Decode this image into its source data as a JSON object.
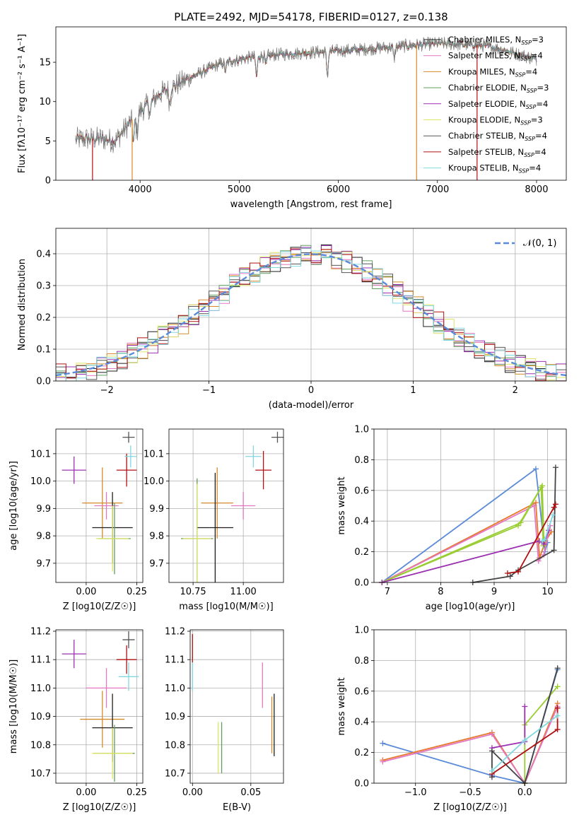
{
  "figure": {
    "title": "PLATE=2492, MJD=54178, FIBERID=0127, z=0.138"
  },
  "colors": {
    "Chabrier MILES": "#1f1f1f",
    "Salpeter MILES": "#e377c2",
    "Kroupa MILES": "#d58a2a",
    "Chabrier ELODIE": "#5f9e5f",
    "Salpeter ELODIE": "#9b30b0",
    "Kroupa ELODIE": "#dde366",
    "Chabrier STELIB": "#555555",
    "Salpeter STELIB": "#b01010",
    "Kroupa STELIB": "#80d8e0",
    "gauss": "#5b8bd8",
    "axis_mw_chab_miles": "#5b8bd8",
    "axis_mw_orange": "#e8782a",
    "axis_mw_green": "#9acd32",
    "axis_mw_purple": "#9b30b0",
    "axis_mw_dark": "#444444",
    "axis_mw_red": "#b01010",
    "axis_mw_cyan": "#80d8e0",
    "axis_mw_pink": "#e377c2"
  },
  "chart_data": [
    {
      "id": "spectrum",
      "type": "line",
      "xlabel": "wavelength [Angstrom, rest frame]",
      "ylabel": "Flux [fλ10⁻¹⁷ erg cm⁻² s⁻¹ A⁻¹]",
      "xlim": [
        3150,
        8300
      ],
      "ylim": [
        0,
        19.5
      ],
      "xticks": [
        4000,
        5000,
        6000,
        7000,
        8000
      ],
      "yticks": [
        0,
        5,
        10,
        15
      ],
      "legend": [
        "Chabrier MILES, N_SSP=3",
        "Salpeter MILES, N_SSP=4",
        "Kroupa MILES, N_SSP=4",
        "Chabrier ELODIE, N_SSP=3",
        "Salpeter ELODIE, N_SSP=4",
        "Kroupa ELODIE, N_SSP=3",
        "Chabrier STELIB, N_SSP=4",
        "Salpeter STELIB, N_SSP=4",
        "Kroupa STELIB, N_SSP=4"
      ],
      "legend_series": [
        "Chabrier MILES",
        "Salpeter MILES",
        "Kroupa MILES",
        "Chabrier ELODIE",
        "Salpeter ELODIE",
        "Kroupa ELODIE",
        "Chabrier STELIB",
        "Salpeter STELIB",
        "Kroupa STELIB"
      ],
      "legend_placement": "top-right",
      "grid": false,
      "data_range": [
        3350,
        8000
      ],
      "continuum": [
        [
          3350,
          5.2
        ],
        [
          3600,
          5.3
        ],
        [
          3750,
          5.0
        ],
        [
          3950,
          8.2
        ],
        [
          4200,
          11.0
        ],
        [
          4500,
          13.0
        ],
        [
          4800,
          14.8
        ],
        [
          5100,
          15.6
        ],
        [
          5400,
          16.0
        ],
        [
          5800,
          16.3
        ],
        [
          6200,
          16.6
        ],
        [
          6600,
          17.0
        ],
        [
          7000,
          17.4
        ],
        [
          7500,
          17.1
        ],
        [
          8000,
          15.4
        ]
      ],
      "absorption_features": [
        [
          3934,
          -3.0
        ],
        [
          3969,
          -2.5
        ],
        [
          4101,
          -1.5
        ],
        [
          4300,
          -2.0
        ],
        [
          4861,
          -1.0
        ],
        [
          5175,
          -2.5
        ],
        [
          5270,
          -1.2
        ],
        [
          5890,
          -3.0
        ],
        [
          6563,
          -1.5
        ]
      ],
      "model_vertical_drops": [
        [
          3520,
          "Salpeter STELIB"
        ],
        [
          3920,
          "Kroupa MILES"
        ],
        [
          6790,
          "Kroupa MILES"
        ],
        [
          7400,
          "Salpeter STELIB"
        ]
      ]
    },
    {
      "id": "residuals",
      "type": "step",
      "xlabel": "(data-model)/error",
      "ylabel": "Normed distribution",
      "xlim": [
        -2.5,
        2.5
      ],
      "ylim": [
        0,
        0.48
      ],
      "xticks": [
        -2,
        -1,
        0,
        1,
        2
      ],
      "yticks": [
        0.0,
        0.1,
        0.2,
        0.3,
        0.4
      ],
      "grid": true,
      "bin_width": 0.1,
      "legend": [
        "𝒩(0, 1)"
      ],
      "legend_placement": "top-right"
    },
    {
      "id": "age_vs_Z",
      "type": "errorbar",
      "xlabel": "Z [log10(Z/Z☉)]",
      "ylabel": "age  [log10(age/yr)]",
      "xlim": [
        -0.15,
        0.28
      ],
      "ylim": [
        9.63,
        10.19
      ],
      "xticks": [
        0.0,
        0.25
      ],
      "yticks": [
        9.7,
        9.8,
        9.9,
        10.0,
        10.1
      ],
      "grid": true,
      "points": [
        {
          "series": "Salpeter ELODIE",
          "x": -0.06,
          "y": 10.04,
          "xerr": 0.06,
          "yerr": 0.05
        },
        {
          "series": "Kroupa MILES",
          "x": 0.08,
          "y": 9.92,
          "xerr": 0.1,
          "yerr": 0.13
        },
        {
          "series": "Salpeter MILES",
          "x": 0.1,
          "y": 9.91,
          "xerr": 0.06,
          "yerr": 0.05
        },
        {
          "series": "Chabrier MILES",
          "x": 0.13,
          "y": 9.83,
          "xerr": 0.1,
          "yerr": 0.13
        },
        {
          "series": "Chabrier ELODIE",
          "x": 0.14,
          "y": 9.79,
          "xerr": 0.08,
          "yerr": 0.13
        },
        {
          "series": "Kroupa ELODIE",
          "x": 0.13,
          "y": 9.79,
          "xerr": 0.08,
          "yerr": 0.12
        },
        {
          "series": "Chabrier STELIB",
          "x": 0.21,
          "y": 10.16,
          "xerr": 0.03,
          "yerr": 0.02
        },
        {
          "series": "Salpeter STELIB",
          "x": 0.2,
          "y": 10.04,
          "xerr": 0.05,
          "yerr": 0.06
        },
        {
          "series": "Kroupa STELIB",
          "x": 0.22,
          "y": 10.09,
          "xerr": 0.03,
          "yerr": 0.04
        }
      ]
    },
    {
      "id": "age_vs_mass",
      "type": "errorbar",
      "xlabel": "mass [log10(M/M☉)]",
      "ylabel": "",
      "xlim": [
        10.63,
        11.2
      ],
      "ylim": [
        9.63,
        10.19
      ],
      "xticks": [
        10.75,
        11.0
      ],
      "yticks": [
        9.7,
        9.8,
        9.9,
        10.0,
        10.1
      ],
      "grid": true,
      "points": [
        {
          "series": "Kroupa MILES",
          "x": 10.87,
          "y": 9.92,
          "xerr": 0.08,
          "yerr": 0.13
        },
        {
          "series": "Salpeter MILES",
          "x": 11.0,
          "y": 9.91,
          "xerr": 0.06,
          "yerr": 0.05
        },
        {
          "series": "Chabrier MILES",
          "x": 10.86,
          "y": 9.83,
          "xerr": 0.09,
          "yerr": 0.2
        },
        {
          "series": "Chabrier ELODIE",
          "x": 10.77,
          "y": 9.79,
          "xerr": 0.08,
          "yerr": 0.22
        },
        {
          "series": "Kroupa ELODIE",
          "x": 10.77,
          "y": 9.79,
          "xerr": 0.07,
          "yerr": 0.2
        },
        {
          "series": "Chabrier STELIB",
          "x": 11.17,
          "y": 10.16,
          "xerr": 0.03,
          "yerr": 0.02
        },
        {
          "series": "Salpeter STELIB",
          "x": 11.1,
          "y": 10.04,
          "xerr": 0.04,
          "yerr": 0.07
        },
        {
          "series": "Kroupa STELIB",
          "x": 11.05,
          "y": 10.09,
          "xerr": 0.04,
          "yerr": 0.04
        }
      ]
    },
    {
      "id": "massweight_vs_age",
      "type": "line",
      "xlabel": "age  [log10(age/yr)]",
      "ylabel": "mass weight",
      "xlim": [
        6.75,
        10.35
      ],
      "ylim": [
        0.0,
        1.0
      ],
      "xticks": [
        7,
        8,
        9,
        10
      ],
      "yticks": [
        0.0,
        0.2,
        0.4,
        0.6,
        0.8,
        1.0
      ],
      "grid": true,
      "series": [
        {
          "name": "Chabrier MILES",
          "color_key": "axis_mw_chab_miles",
          "x": [
            6.9,
            9.78,
            9.95,
            10.0
          ],
          "y": [
            0.0,
            0.74,
            0.2,
            0.26
          ]
        },
        {
          "name": "Kroupa MILES",
          "color_key": "axis_mw_orange",
          "x": [
            6.9,
            9.78,
            9.85,
            9.95,
            10.07
          ],
          "y": [
            0.0,
            0.52,
            0.16,
            0.26,
            0.33
          ]
        },
        {
          "name": "Salpeter MILES",
          "color_key": "axis_mw_pink",
          "x": [
            6.9,
            9.75,
            9.83,
            9.93,
            10.05
          ],
          "y": [
            0.0,
            0.5,
            0.14,
            0.18,
            0.37
          ]
        },
        {
          "name": "Kroupa ELODIE",
          "color_key": "axis_mw_green",
          "x": [
            6.9,
            9.5,
            9.9,
            9.93
          ],
          "y": [
            0.0,
            0.39,
            0.63,
            0.27
          ]
        },
        {
          "name": "Chabrier ELODIE",
          "color_key": "axis_mw_green",
          "x": [
            6.9,
            9.45,
            9.88,
            9.92
          ],
          "y": [
            0.0,
            0.37,
            0.62,
            0.24
          ]
        },
        {
          "name": "Salpeter ELODIE",
          "color_key": "axis_mw_purple",
          "x": [
            6.9,
            9.85,
            9.93,
            10.02
          ],
          "y": [
            0.0,
            0.27,
            0.25,
            0.34
          ]
        },
        {
          "name": "Chabrier STELIB",
          "color_key": "axis_mw_dark",
          "x": [
            8.6,
            9.3,
            9.45,
            10.12,
            10.15
          ],
          "y": [
            0.0,
            0.04,
            0.08,
            0.21,
            0.75
          ]
        },
        {
          "name": "Salpeter STELIB",
          "color_key": "axis_mw_red",
          "x": [
            9.25,
            9.45,
            10.12,
            10.15
          ],
          "y": [
            0.06,
            0.07,
            0.49,
            0.51
          ]
        },
        {
          "name": "Kroupa STELIB",
          "color_key": "axis_mw_cyan",
          "x": [
            9.9,
            9.95,
            10.1
          ],
          "y": [
            0.27,
            0.28,
            0.44
          ]
        }
      ]
    },
    {
      "id": "mass_vs_Z",
      "type": "errorbar",
      "xlabel": "Z [log10(Z/Z☉)]",
      "ylabel": "mass [log10(M/M☉)]",
      "xlim": [
        -0.15,
        0.28
      ],
      "ylim": [
        10.665,
        11.205
      ],
      "xticks": [
        0.0,
        0.25
      ],
      "yticks": [
        10.7,
        10.8,
        10.9,
        11.0,
        11.1,
        11.2
      ],
      "grid": true,
      "points": [
        {
          "series": "Salpeter ELODIE",
          "x": -0.06,
          "y": 11.12,
          "xerr": 0.06,
          "yerr": 0.05
        },
        {
          "series": "Salpeter MILES",
          "x": 0.1,
          "y": 11.0,
          "xerr": 0.1,
          "yerr": 0.07
        },
        {
          "series": "Kroupa MILES",
          "x": 0.08,
          "y": 10.89,
          "xerr": 0.11,
          "yerr": 0.1
        },
        {
          "series": "Chabrier MILES",
          "x": 0.13,
          "y": 10.86,
          "xerr": 0.1,
          "yerr": 0.12
        },
        {
          "series": "Chabrier ELODIE",
          "x": 0.14,
          "y": 10.77,
          "xerr": 0.1,
          "yerr": 0.1
        },
        {
          "series": "Kroupa ELODIE",
          "x": 0.13,
          "y": 10.77,
          "xerr": 0.1,
          "yerr": 0.09
        },
        {
          "series": "Chabrier STELIB",
          "x": 0.21,
          "y": 11.17,
          "xerr": 0.03,
          "yerr": 0.03
        },
        {
          "series": "Salpeter STELIB",
          "x": 0.2,
          "y": 11.1,
          "xerr": 0.05,
          "yerr": 0.05
        },
        {
          "series": "Kroupa STELIB",
          "x": 0.21,
          "y": 11.04,
          "xerr": 0.05,
          "yerr": 0.05
        }
      ]
    },
    {
      "id": "mass_vs_ebv",
      "type": "errorbar",
      "xlabel": "E(B-V)",
      "ylabel": "",
      "xlim": [
        -0.002,
        0.078
      ],
      "ylim": [
        10.665,
        11.205
      ],
      "xticks": [
        0.0,
        0.05
      ],
      "yticks": [
        10.7,
        10.8,
        10.9,
        11.0,
        11.1,
        11.2
      ],
      "grid": true,
      "points": [
        {
          "series": "Salpeter STELIB",
          "x": 0.0,
          "y": 11.14,
          "xerr": 0,
          "yerr": 0.05
        },
        {
          "series": "Kroupa STELIB",
          "x": 0.0,
          "y": 11.04,
          "xerr": 0,
          "yerr": 0.05
        },
        {
          "series": "Salpeter MILES",
          "x": 0.06,
          "y": 11.01,
          "xerr": 0,
          "yerr": 0.08
        },
        {
          "series": "Kroupa MILES",
          "x": 0.068,
          "y": 10.87,
          "xerr": 0,
          "yerr": 0.1
        },
        {
          "series": "Chabrier MILES",
          "x": 0.07,
          "y": 10.87,
          "xerr": 0,
          "yerr": 0.11
        },
        {
          "series": "Kroupa ELODIE",
          "x": 0.022,
          "y": 10.79,
          "xerr": 0,
          "yerr": 0.09
        },
        {
          "series": "Chabrier ELODIE",
          "x": 0.025,
          "y": 10.79,
          "xerr": 0,
          "yerr": 0.09
        }
      ]
    },
    {
      "id": "massweight_vs_Z",
      "type": "line",
      "xlabel": "Z [log10(Z/Z☉)]",
      "ylabel": "mass weight",
      "xlim": [
        -1.38,
        0.38
      ],
      "ylim": [
        0.0,
        1.0
      ],
      "xticks": [
        -1.0,
        -0.5,
        0.0
      ],
      "yticks": [
        0.0,
        0.2,
        0.4,
        0.6,
        0.8,
        1.0
      ],
      "grid": true,
      "series": [
        {
          "name": "Chabrier MILES",
          "color_key": "axis_mw_chab_miles",
          "x": [
            -1.3,
            -0.3,
            0.0,
            0.3
          ],
          "y": [
            0.26,
            0.05,
            0.0,
            0.74
          ]
        },
        {
          "name": "Kroupa MILES",
          "color_key": "axis_mw_orange",
          "x": [
            -1.3,
            -0.3,
            0.0,
            0.3
          ],
          "y": [
            0.15,
            0.33,
            0.0,
            0.52
          ]
        },
        {
          "name": "Salpeter MILES",
          "color_key": "axis_mw_pink",
          "x": [
            -1.3,
            -0.3,
            0.0,
            0.3
          ],
          "y": [
            0.14,
            0.32,
            0.0,
            0.5
          ]
        },
        {
          "name": "Kroupa ELODIE",
          "color_key": "axis_mw_green",
          "x": [
            0.0,
            0.0,
            0.3
          ],
          "y": [
            0.0,
            0.38,
            0.63
          ]
        },
        {
          "name": "Salpeter ELODIE",
          "color_key": "axis_mw_purple",
          "x": [
            -0.3,
            0.0,
            0.0
          ],
          "y": [
            0.23,
            0.27,
            0.5
          ]
        },
        {
          "name": "Chabrier STELIB",
          "color_key": "axis_mw_dark",
          "x": [
            -0.3,
            -0.3,
            0.0,
            0.3
          ],
          "y": [
            0.04,
            0.21,
            0.0,
            0.75
          ]
        },
        {
          "name": "Salpeter STELIB",
          "color_key": "axis_mw_red",
          "x": [
            -0.3,
            0.3,
            0.3
          ],
          "y": [
            0.06,
            0.35,
            0.49
          ]
        },
        {
          "name": "Kroupa STELIB",
          "color_key": "axis_mw_cyan",
          "x": [
            -0.3,
            0.0,
            0.3
          ],
          "y": [
            0.08,
            0.28,
            0.44
          ]
        }
      ]
    }
  ]
}
